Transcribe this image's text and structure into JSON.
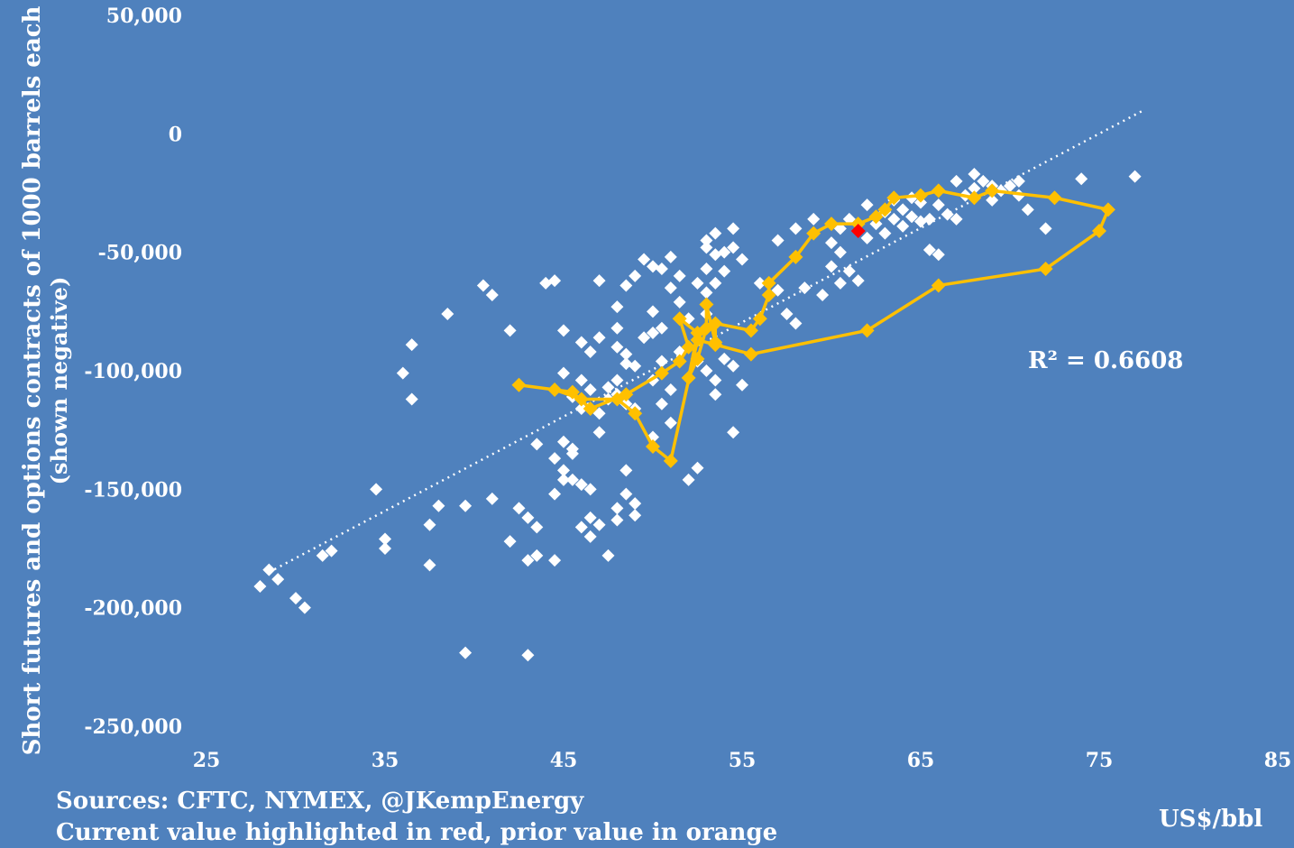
{
  "chart_data": {
    "type": "scatter",
    "title": "",
    "xlabel": "US$/bbl",
    "ylabel": "Short futures and options contracts of 1000 barrels each",
    "ylabel_sub": "(shown negative)",
    "xlim": [
      25,
      85
    ],
    "ylim": [
      -250000,
      50000
    ],
    "x_ticks": [
      "25",
      "35",
      "45",
      "55",
      "65",
      "75",
      "85"
    ],
    "y_ticks": [
      "50,000",
      "0",
      "-50,000",
      "-100,000",
      "-150,000",
      "-200,000",
      "-250,000"
    ],
    "grid": false,
    "legend": "none",
    "sources": "Sources: CFTC, NYMEX, @JKempEnergy",
    "note": "Current value highlighted in red, prior value in orange",
    "r_squared_label": "R² = 0.6608",
    "colors": {
      "background": "#4f81bd",
      "points": "#ffffff",
      "recent": "#ffc000",
      "current": "#ff0000"
    },
    "trendline": {
      "x": [
        28.5,
        77.5
      ],
      "y": [
        -185000,
        10000
      ]
    },
    "series": [
      {
        "values": [
          [
            28,
            -191000
          ],
          [
            28.5,
            -184000
          ],
          [
            29,
            -188000
          ],
          [
            30,
            -196000
          ],
          [
            30.5,
            -200000
          ],
          [
            32,
            -176000
          ],
          [
            31.5,
            -178000
          ],
          [
            34.5,
            -150000
          ],
          [
            35,
            -175000
          ],
          [
            35,
            -171000
          ],
          [
            36,
            -101000
          ],
          [
            36.5,
            -89000
          ],
          [
            36.5,
            -112000
          ],
          [
            37.5,
            -165000
          ],
          [
            37.5,
            -182000
          ],
          [
            38,
            -157000
          ],
          [
            38.5,
            -76000
          ],
          [
            39.5,
            -157000
          ],
          [
            39.5,
            -219000
          ],
          [
            40.5,
            -64000
          ],
          [
            41,
            -68000
          ],
          [
            41,
            -154000
          ],
          [
            42,
            -172000
          ],
          [
            42,
            -83000
          ],
          [
            42.5,
            -158000
          ],
          [
            43,
            -162000
          ],
          [
            43,
            -180000
          ],
          [
            43,
            -220000
          ],
          [
            43.5,
            -131000
          ],
          [
            43.5,
            -166000
          ],
          [
            43.5,
            -178000
          ],
          [
            44,
            -63000
          ],
          [
            44.5,
            -62000
          ],
          [
            44.5,
            -152000
          ],
          [
            44.5,
            -137000
          ],
          [
            44.5,
            -180000
          ],
          [
            45,
            -146000
          ],
          [
            45,
            -83000
          ],
          [
            45,
            -142000
          ],
          [
            45,
            -130000
          ],
          [
            45,
            -101000
          ],
          [
            45.5,
            -146000
          ],
          [
            45.5,
            -135000
          ],
          [
            45.5,
            -111000
          ],
          [
            45.5,
            -133000
          ],
          [
            46,
            -148000
          ],
          [
            46,
            -116000
          ],
          [
            46,
            -104000
          ],
          [
            46,
            -88000
          ],
          [
            46,
            -166000
          ],
          [
            46.5,
            -108000
          ],
          [
            46.5,
            -92000
          ],
          [
            46.5,
            -150000
          ],
          [
            46.5,
            -170000
          ],
          [
            46.5,
            -162000
          ],
          [
            47,
            -62000
          ],
          [
            47,
            -86000
          ],
          [
            47,
            -118000
          ],
          [
            47,
            -126000
          ],
          [
            47,
            -165000
          ],
          [
            47.5,
            -112000
          ],
          [
            47.5,
            -107000
          ],
          [
            47.5,
            -178000
          ],
          [
            48,
            -73000
          ],
          [
            48,
            -82000
          ],
          [
            48,
            -90000
          ],
          [
            48,
            -104000
          ],
          [
            48,
            -110000
          ],
          [
            48,
            -158000
          ],
          [
            48,
            -163000
          ],
          [
            48.5,
            -64000
          ],
          [
            48.5,
            -93000
          ],
          [
            48.5,
            -97000
          ],
          [
            48.5,
            -114000
          ],
          [
            48.5,
            -142000
          ],
          [
            48.5,
            -152000
          ],
          [
            49,
            -60000
          ],
          [
            49,
            -98000
          ],
          [
            49,
            -116000
          ],
          [
            49,
            -156000
          ],
          [
            49,
            -161000
          ],
          [
            49.5,
            -53000
          ],
          [
            49.5,
            -86000
          ],
          [
            50,
            -56000
          ],
          [
            50,
            -75000
          ],
          [
            50,
            -84000
          ],
          [
            50,
            -104000
          ],
          [
            50,
            -128000
          ],
          [
            50.5,
            -57000
          ],
          [
            50.5,
            -82000
          ],
          [
            50.5,
            -96000
          ],
          [
            50.5,
            -114000
          ],
          [
            51,
            -52000
          ],
          [
            51,
            -65000
          ],
          [
            51,
            -108000
          ],
          [
            51,
            -122000
          ],
          [
            51.5,
            -60000
          ],
          [
            51.5,
            -71000
          ],
          [
            51.5,
            -92000
          ],
          [
            52,
            -78000
          ],
          [
            52,
            -103000
          ],
          [
            52,
            -146000
          ],
          [
            52.5,
            -63000
          ],
          [
            52.5,
            -96000
          ],
          [
            52.5,
            -141000
          ],
          [
            53,
            -45000
          ],
          [
            53,
            -48000
          ],
          [
            53,
            -57000
          ],
          [
            53,
            -67000
          ],
          [
            53,
            -76000
          ],
          [
            53,
            -100000
          ],
          [
            53.5,
            -42000
          ],
          [
            53.5,
            -51000
          ],
          [
            53.5,
            -63000
          ],
          [
            53.5,
            -88000
          ],
          [
            53.5,
            -104000
          ],
          [
            53.5,
            -110000
          ],
          [
            54,
            -50000
          ],
          [
            54,
            -58000
          ],
          [
            54,
            -95000
          ],
          [
            54.5,
            -40000
          ],
          [
            54.5,
            -48000
          ],
          [
            54.5,
            -98000
          ],
          [
            54.5,
            -126000
          ],
          [
            55,
            -53000
          ],
          [
            55,
            -106000
          ],
          [
            56,
            -63000
          ],
          [
            57,
            -45000
          ],
          [
            57,
            -66000
          ],
          [
            57.5,
            -76000
          ],
          [
            58,
            -40000
          ],
          [
            58,
            -80000
          ],
          [
            58.5,
            -65000
          ],
          [
            59,
            -36000
          ],
          [
            59.5,
            -68000
          ],
          [
            60,
            -46000
          ],
          [
            60,
            -56000
          ],
          [
            60.5,
            -40000
          ],
          [
            60.5,
            -50000
          ],
          [
            60.5,
            -63000
          ],
          [
            61,
            -36000
          ],
          [
            61,
            -58000
          ],
          [
            61.5,
            -62000
          ],
          [
            62,
            -30000
          ],
          [
            62,
            -44000
          ],
          [
            62.5,
            -38000
          ],
          [
            63,
            -33000
          ],
          [
            63,
            -42000
          ],
          [
            63.5,
            -28000
          ],
          [
            63.5,
            -36000
          ],
          [
            64,
            -32000
          ],
          [
            64,
            -39000
          ],
          [
            64.5,
            -27000
          ],
          [
            64.5,
            -35000
          ],
          [
            65,
            -29000
          ],
          [
            65,
            -37000
          ],
          [
            65.5,
            -36000
          ],
          [
            65.5,
            -49000
          ],
          [
            66,
            -30000
          ],
          [
            66,
            -51000
          ],
          [
            66.5,
            -34000
          ],
          [
            67,
            -20000
          ],
          [
            67,
            -36000
          ],
          [
            67.5,
            -26000
          ],
          [
            68,
            -17000
          ],
          [
            68,
            -23000
          ],
          [
            68.5,
            -20000
          ],
          [
            69,
            -22000
          ],
          [
            69,
            -28000
          ],
          [
            69.5,
            -24000
          ],
          [
            70,
            -22000
          ],
          [
            70.5,
            -20000
          ],
          [
            70.5,
            -26000
          ],
          [
            71,
            -32000
          ],
          [
            72,
            -40000
          ],
          [
            74,
            -19000
          ],
          [
            77,
            -18000
          ]
        ]
      },
      {
        "values": [
          [
            42.5,
            -106000
          ],
          [
            45.5,
            -109000
          ],
          [
            46.5,
            -116000
          ],
          [
            48.5,
            -110000
          ],
          [
            50.5,
            -101000
          ],
          [
            51.5,
            -96000
          ],
          [
            52,
            -90000
          ],
          [
            51.5,
            -78000
          ],
          [
            52.5,
            -84000
          ],
          [
            52,
            -103000
          ],
          [
            52.5,
            -95000
          ],
          [
            53,
            -82000
          ],
          [
            53,
            -72000
          ],
          [
            53.5,
            -88000
          ],
          [
            53.5,
            -80000
          ],
          [
            55.5,
            -83000
          ],
          [
            56,
            -78000
          ],
          [
            56.5,
            -68000
          ],
          [
            56.5,
            -63000
          ],
          [
            58,
            -52000
          ],
          [
            59,
            -42000
          ],
          [
            60,
            -38000
          ],
          [
            61.5,
            -38000
          ],
          [
            62.5,
            -35000
          ],
          [
            63,
            -32000
          ],
          [
            63.5,
            -27000
          ],
          [
            65,
            -26000
          ],
          [
            66,
            -24000
          ],
          [
            68,
            -27000
          ],
          [
            69,
            -24000
          ],
          [
            72.5,
            -27000
          ],
          [
            75.5,
            -32000
          ],
          [
            75,
            -41000
          ],
          [
            72,
            -57000
          ],
          [
            66,
            -64000
          ],
          [
            62,
            -83000
          ],
          [
            55.5,
            -93000
          ],
          [
            53.5,
            -89000
          ],
          [
            52.5,
            -87000
          ],
          [
            51,
            -138000
          ],
          [
            50,
            -132000
          ],
          [
            49,
            -118000
          ],
          [
            48,
            -112000
          ],
          [
            46,
            -112000
          ],
          [
            44.5,
            -108000
          ]
        ]
      },
      {
        "values": [
          [
            61.5,
            -41000
          ]
        ]
      }
    ]
  }
}
